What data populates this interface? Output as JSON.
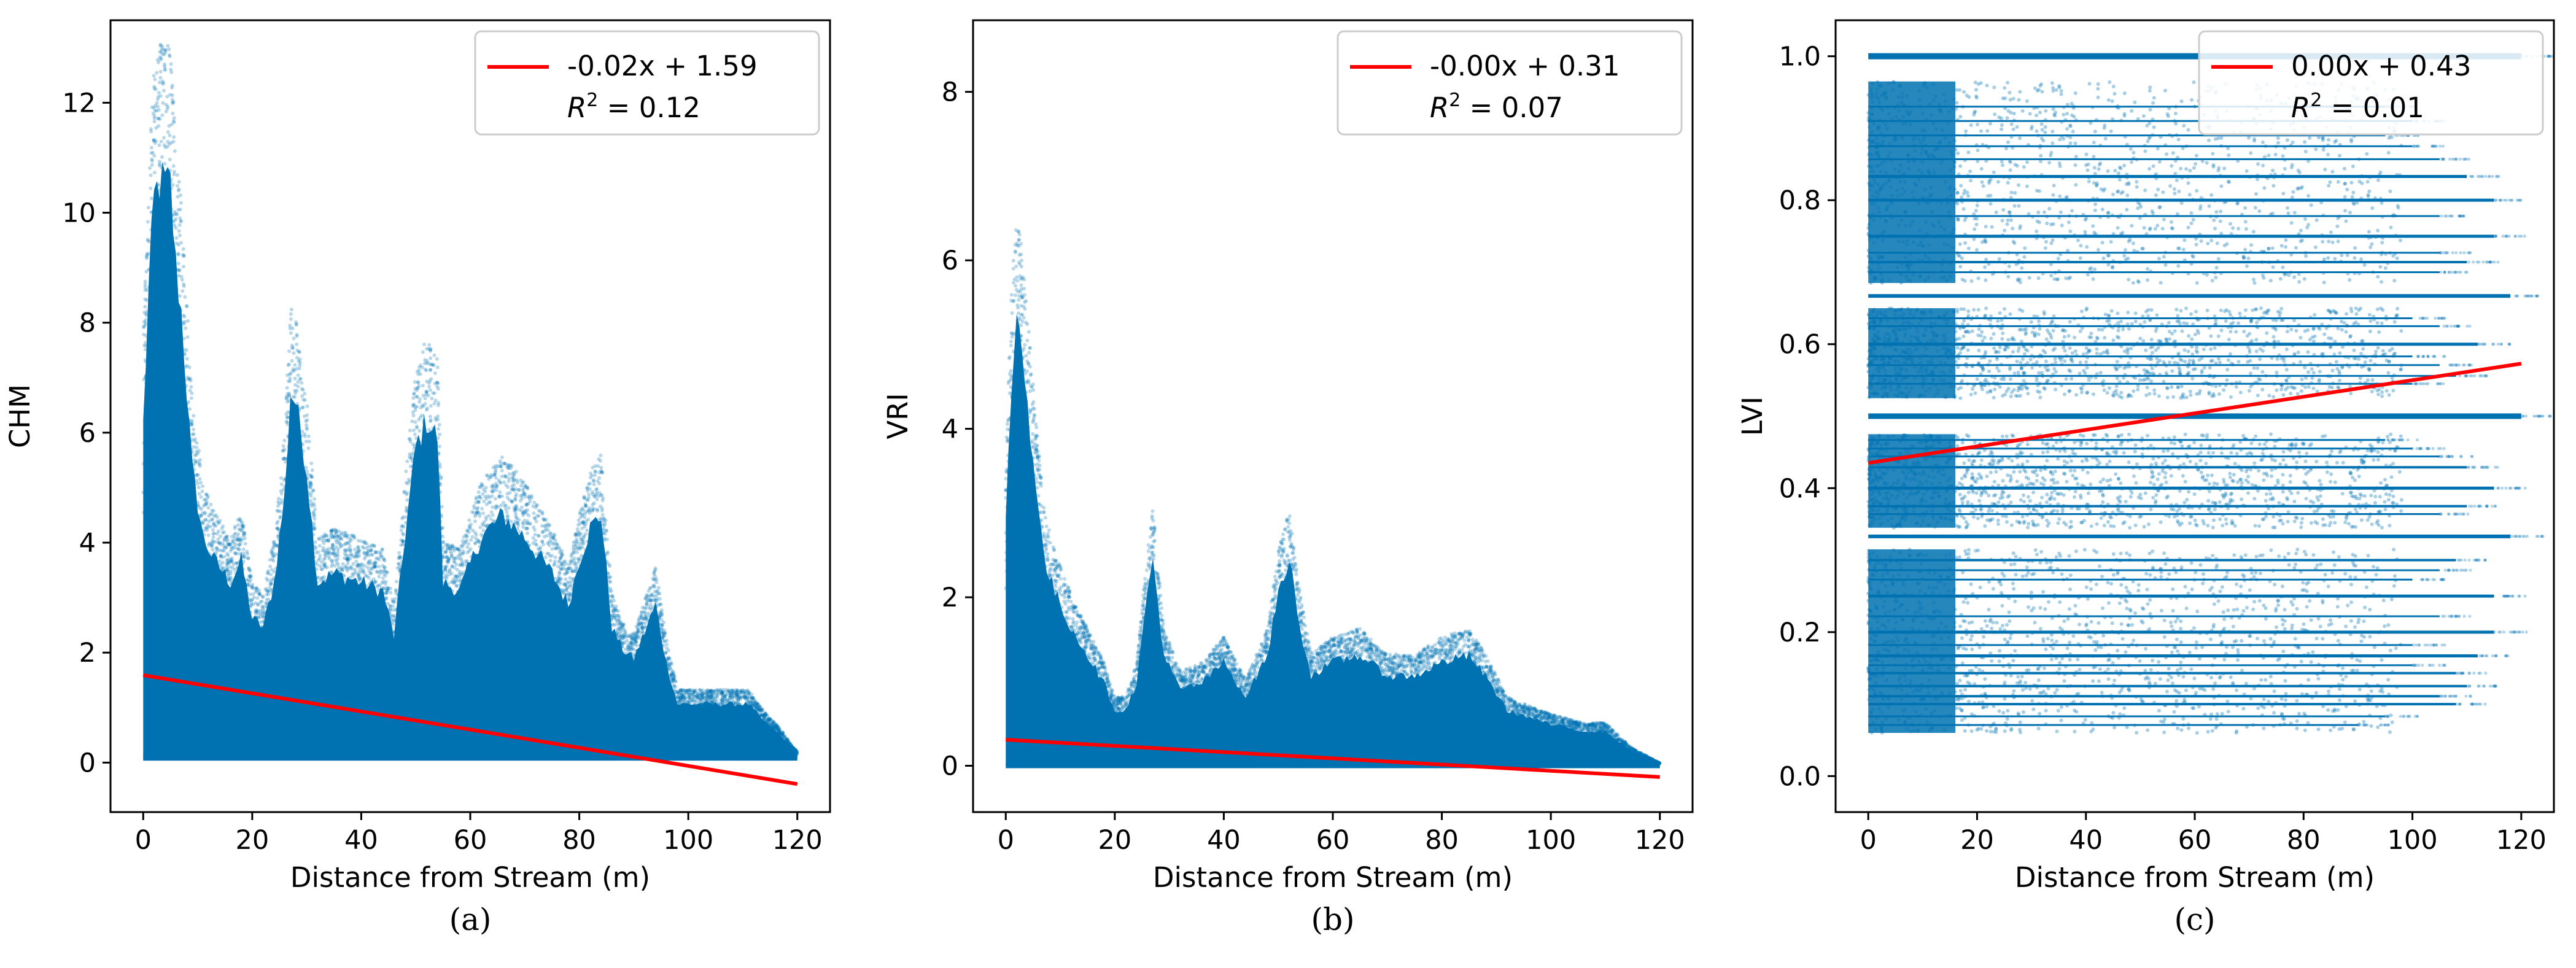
{
  "colors": {
    "scatter": "#0072b2",
    "fit": "#ff0000",
    "axis": "#000000",
    "legend_border": "#cccccc"
  },
  "chart_data": [
    {
      "type": "scatter",
      "panel": "a",
      "caption": "(a)",
      "xlabel": "Distance from Stream (m)",
      "ylabel": "CHM",
      "xlim": [
        -6,
        126
      ],
      "ylim": [
        -0.9,
        13.5
      ],
      "xticks": [
        0,
        20,
        40,
        60,
        80,
        100,
        120
      ],
      "yticks": [
        0,
        2,
        4,
        6,
        8,
        10,
        12
      ],
      "tick_decimals": 0,
      "fit": {
        "slope": -0.0165,
        "intercept": 1.59,
        "x0": 0,
        "x1": 120,
        "equation": "-0.02x + 1.59",
        "r2_text": "= 0.12"
      },
      "legend_position": "top-right",
      "scatter_floor": 0.08,
      "scatter_envelope": [
        [
          0,
          7.5
        ],
        [
          1,
          10.5
        ],
        [
          2,
          12.5
        ],
        [
          3,
          12.9
        ],
        [
          5,
          12.8
        ],
        [
          6,
          11
        ],
        [
          7,
          10
        ],
        [
          9,
          6.5
        ],
        [
          11,
          5
        ],
        [
          13,
          4.5
        ],
        [
          16,
          4
        ],
        [
          18,
          4.5
        ],
        [
          20,
          3.2
        ],
        [
          22,
          3
        ],
        [
          24,
          4
        ],
        [
          26,
          6
        ],
        [
          27,
          8.2
        ],
        [
          28,
          8
        ],
        [
          30,
          6.5
        ],
        [
          32,
          4
        ],
        [
          35,
          4.2
        ],
        [
          40,
          4
        ],
        [
          44,
          3.8
        ],
        [
          46,
          2.8
        ],
        [
          48,
          5
        ],
        [
          50,
          7
        ],
        [
          52,
          7.6
        ],
        [
          54,
          7.2
        ],
        [
          55,
          4
        ],
        [
          58,
          3.8
        ],
        [
          62,
          5
        ],
        [
          66,
          5.5
        ],
        [
          70,
          5
        ],
        [
          75,
          4.2
        ],
        [
          78,
          3.5
        ],
        [
          80,
          4.5
        ],
        [
          82,
          5.2
        ],
        [
          84,
          5.5
        ],
        [
          86,
          3
        ],
        [
          88,
          2.5
        ],
        [
          90,
          2.3
        ],
        [
          94,
          3.5
        ],
        [
          96,
          2.2
        ],
        [
          98,
          1.3
        ],
        [
          102,
          1.3
        ],
        [
          108,
          1.3
        ],
        [
          111,
          1.3
        ],
        [
          114,
          0.9
        ],
        [
          117,
          0.6
        ],
        [
          119,
          0.3
        ],
        [
          120,
          0.2
        ]
      ]
    },
    {
      "type": "scatter",
      "panel": "b",
      "caption": "(b)",
      "xlabel": "Distance from Stream (m)",
      "ylabel": "VRI",
      "xlim": [
        -6,
        126
      ],
      "ylim": [
        -0.55,
        8.85
      ],
      "xticks": [
        0,
        20,
        40,
        60,
        80,
        100,
        120
      ],
      "yticks": [
        0,
        2,
        4,
        6,
        8
      ],
      "tick_decimals": 0,
      "fit": {
        "slope": -0.0037,
        "intercept": 0.31,
        "x0": 0,
        "x1": 120,
        "equation": "-0.00x + 0.31",
        "r2_text": "= 0.07"
      },
      "legend_position": "top-right",
      "scatter_floor": 0,
      "scatter_envelope": [
        [
          0,
          3.5
        ],
        [
          1,
          5.5
        ],
        [
          2,
          6.5
        ],
        [
          3,
          6
        ],
        [
          5,
          4.5
        ],
        [
          7,
          3
        ],
        [
          9,
          2.5
        ],
        [
          12,
          2
        ],
        [
          15,
          1.6
        ],
        [
          18,
          1.2
        ],
        [
          20,
          0.8
        ],
        [
          22,
          0.8
        ],
        [
          24,
          1.2
        ],
        [
          26,
          2.5
        ],
        [
          27,
          3
        ],
        [
          29,
          1.6
        ],
        [
          32,
          1.1
        ],
        [
          36,
          1.2
        ],
        [
          40,
          1.5
        ],
        [
          44,
          1
        ],
        [
          48,
          1.6
        ],
        [
          50,
          2.5
        ],
        [
          52,
          3
        ],
        [
          54,
          2
        ],
        [
          56,
          1.3
        ],
        [
          60,
          1.5
        ],
        [
          65,
          1.6
        ],
        [
          70,
          1.3
        ],
        [
          75,
          1.3
        ],
        [
          80,
          1.5
        ],
        [
          85,
          1.6
        ],
        [
          88,
          1.3
        ],
        [
          92,
          0.8
        ],
        [
          100,
          0.6
        ],
        [
          106,
          0.5
        ],
        [
          110,
          0.5
        ],
        [
          115,
          0.2
        ],
        [
          118,
          0.1
        ],
        [
          120,
          0.03
        ]
      ]
    },
    {
      "type": "scatter",
      "panel": "c",
      "caption": "(c)",
      "xlabel": "Distance from Stream (m)",
      "ylabel": "LVI",
      "xlim": [
        -6,
        126
      ],
      "ylim": [
        -0.05,
        1.05
      ],
      "xticks": [
        0,
        20,
        40,
        60,
        80,
        100,
        120
      ],
      "yticks": [
        0.0,
        0.2,
        0.4,
        0.6,
        0.8,
        1.0
      ],
      "tick_decimals": 1,
      "fit": {
        "slope": 0.00115,
        "intercept": 0.435,
        "x0": 0,
        "x1": 120,
        "equation": "0.00x + 0.43",
        "r2_text": "= 0.01"
      },
      "legend_position": "top-right",
      "lines": [
        {
          "y": 1.0,
          "x_end": 120,
          "w": 10
        },
        {
          "y": 0.93,
          "x_end": 95,
          "w": 3
        },
        {
          "y": 0.91,
          "x_end": 100,
          "w": 3
        },
        {
          "y": 0.89,
          "x_end": 95,
          "w": 3
        },
        {
          "y": 0.875,
          "x_end": 100,
          "w": 3
        },
        {
          "y": 0.857,
          "x_end": 105,
          "w": 3
        },
        {
          "y": 0.833,
          "x_end": 110,
          "w": 5
        },
        {
          "y": 0.8,
          "x_end": 115,
          "w": 5
        },
        {
          "y": 0.778,
          "x_end": 105,
          "w": 3
        },
        {
          "y": 0.75,
          "x_end": 115,
          "w": 5
        },
        {
          "y": 0.727,
          "x_end": 105,
          "w": 3
        },
        {
          "y": 0.714,
          "x_end": 110,
          "w": 4
        },
        {
          "y": 0.7,
          "x_end": 105,
          "w": 3
        },
        {
          "y": 0.667,
          "x_end": 118,
          "w": 6
        },
        {
          "y": 0.636,
          "x_end": 100,
          "w": 3
        },
        {
          "y": 0.625,
          "x_end": 105,
          "w": 3
        },
        {
          "y": 0.6,
          "x_end": 112,
          "w": 5
        },
        {
          "y": 0.583,
          "x_end": 100,
          "w": 3
        },
        {
          "y": 0.571,
          "x_end": 105,
          "w": 3
        },
        {
          "y": 0.556,
          "x_end": 108,
          "w": 3
        },
        {
          "y": 0.545,
          "x_end": 100,
          "w": 3
        },
        {
          "y": 0.5,
          "x_end": 120,
          "w": 9
        },
        {
          "y": 0.467,
          "x_end": 95,
          "w": 3
        },
        {
          "y": 0.455,
          "x_end": 100,
          "w": 3
        },
        {
          "y": 0.444,
          "x_end": 105,
          "w": 3
        },
        {
          "y": 0.429,
          "x_end": 110,
          "w": 4
        },
        {
          "y": 0.4,
          "x_end": 115,
          "w": 5
        },
        {
          "y": 0.375,
          "x_end": 110,
          "w": 4
        },
        {
          "y": 0.364,
          "x_end": 105,
          "w": 3
        },
        {
          "y": 0.333,
          "x_end": 118,
          "w": 6
        },
        {
          "y": 0.3,
          "x_end": 108,
          "w": 4
        },
        {
          "y": 0.286,
          "x_end": 105,
          "w": 3
        },
        {
          "y": 0.273,
          "x_end": 100,
          "w": 3
        },
        {
          "y": 0.25,
          "x_end": 115,
          "w": 5
        },
        {
          "y": 0.222,
          "x_end": 105,
          "w": 3
        },
        {
          "y": 0.2,
          "x_end": 115,
          "w": 5
        },
        {
          "y": 0.182,
          "x_end": 100,
          "w": 3
        },
        {
          "y": 0.167,
          "x_end": 112,
          "w": 5
        },
        {
          "y": 0.154,
          "x_end": 100,
          "w": 3
        },
        {
          "y": 0.143,
          "x_end": 108,
          "w": 4
        },
        {
          "y": 0.125,
          "x_end": 110,
          "w": 4
        },
        {
          "y": 0.111,
          "x_end": 105,
          "w": 4
        },
        {
          "y": 0.1,
          "x_end": 108,
          "w": 4
        },
        {
          "y": 0.083,
          "x_end": 95,
          "w": 3
        },
        {
          "y": 0.071,
          "x_end": 90,
          "w": 3
        }
      ],
      "bands": [
        [
          0.685,
          0.965
        ],
        [
          0.525,
          0.65
        ],
        [
          0.345,
          0.475
        ],
        [
          0.06,
          0.315
        ]
      ]
    }
  ]
}
